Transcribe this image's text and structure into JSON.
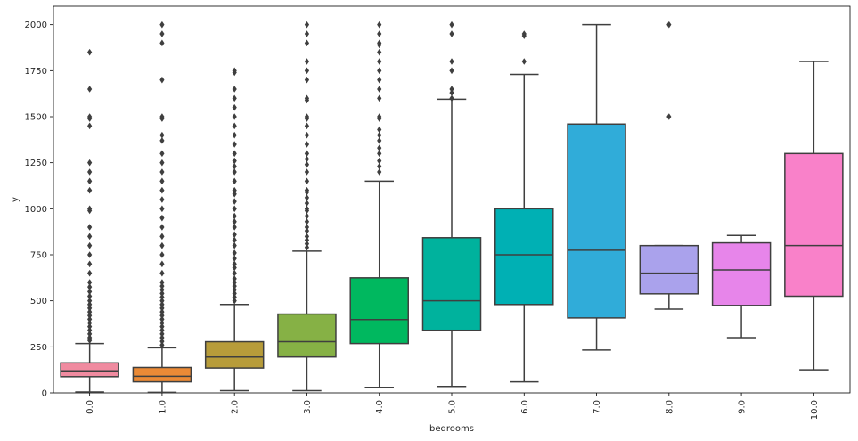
{
  "chart_data": {
    "type": "box",
    "title": "",
    "xlabel": "bedrooms",
    "ylabel": "y",
    "ylim": [
      0,
      2100
    ],
    "yticks": [
      0,
      250,
      500,
      750,
      1000,
      1250,
      1500,
      1750,
      2000
    ],
    "categories": [
      "0.0",
      "1.0",
      "2.0",
      "3.0",
      "4.0",
      "5.0",
      "6.0",
      "7.0",
      "8.0",
      "9.0",
      "10.0"
    ],
    "colors": [
      "#f08ba0",
      "#eb8a36",
      "#b79c3a",
      "#86b145",
      "#00b85f",
      "#00b29d",
      "#00b0b4",
      "#30acd9",
      "#aaa2ec",
      "#e785ea",
      "#f981c9"
    ],
    "series": [
      {
        "category": "0.0",
        "whislo": 5,
        "q1": 88,
        "med": 120,
        "q3": 163,
        "whishi": 268,
        "fliers": [
          285,
          300,
          320,
          340,
          360,
          380,
          400,
          420,
          440,
          460,
          480,
          500,
          525,
          550,
          575,
          600,
          650,
          700,
          750,
          800,
          850,
          900,
          990,
          1000,
          1100,
          1150,
          1200,
          1250,
          1450,
          1490,
          1500,
          1650,
          1850
        ]
      },
      {
        "category": "1.0",
        "whislo": 3,
        "q1": 60,
        "med": 90,
        "q3": 138,
        "whishi": 245,
        "fliers": [
          260,
          280,
          300,
          320,
          340,
          360,
          380,
          400,
          420,
          440,
          460,
          480,
          500,
          520,
          540,
          560,
          580,
          600,
          650,
          700,
          750,
          800,
          850,
          900,
          950,
          1000,
          1050,
          1100,
          1150,
          1200,
          1250,
          1300,
          1370,
          1400,
          1490,
          1500,
          1700,
          1900,
          1950,
          2000
        ]
      },
      {
        "category": "2.0",
        "whislo": 12,
        "q1": 135,
        "med": 195,
        "q3": 278,
        "whishi": 480,
        "fliers": [
          500,
          520,
          540,
          560,
          580,
          600,
          620,
          650,
          680,
          700,
          730,
          760,
          800,
          830,
          860,
          900,
          930,
          960,
          1000,
          1040,
          1080,
          1100,
          1150,
          1200,
          1230,
          1260,
          1300,
          1350,
          1400,
          1450,
          1500,
          1550,
          1600,
          1650,
          1740,
          1750
        ]
      },
      {
        "category": "3.0",
        "whislo": 12,
        "q1": 195,
        "med": 278,
        "q3": 428,
        "whishi": 770,
        "fliers": [
          790,
          810,
          830,
          850,
          880,
          900,
          930,
          960,
          990,
          1000,
          1030,
          1060,
          1090,
          1100,
          1150,
          1200,
          1240,
          1270,
          1300,
          1350,
          1400,
          1450,
          1490,
          1500,
          1590,
          1600,
          1700,
          1750,
          1800,
          1900,
          1950,
          2000
        ]
      },
      {
        "category": "4.0",
        "whislo": 30,
        "q1": 268,
        "med": 398,
        "q3": 625,
        "whishi": 1150,
        "fliers": [
          1200,
          1230,
          1260,
          1300,
          1330,
          1370,
          1400,
          1430,
          1490,
          1500,
          1600,
          1650,
          1700,
          1750,
          1800,
          1850,
          1890,
          1900,
          1950,
          2000
        ]
      },
      {
        "category": "5.0",
        "whislo": 35,
        "q1": 340,
        "med": 500,
        "q3": 843,
        "whishi": 1595,
        "fliers": [
          1600,
          1630,
          1650,
          1750,
          1800,
          1950,
          2000
        ]
      },
      {
        "category": "6.0",
        "whislo": 60,
        "q1": 480,
        "med": 750,
        "q3": 1000,
        "whishi": 1730,
        "fliers": [
          1800,
          1940,
          1950
        ]
      },
      {
        "category": "7.0",
        "whislo": 233,
        "q1": 407,
        "med": 775,
        "q3": 1460,
        "whishi": 2000,
        "fliers": []
      },
      {
        "category": "8.0",
        "whislo": 455,
        "q1": 538,
        "med": 650,
        "q3": 800,
        "whishi": 800,
        "fliers": [
          1500,
          2000
        ]
      },
      {
        "category": "9.0",
        "whislo": 300,
        "q1": 475,
        "med": 668,
        "q3": 815,
        "whishi": 855,
        "fliers": []
      },
      {
        "category": "10.0",
        "whislo": 125,
        "q1": 525,
        "med": 800,
        "q3": 1300,
        "whishi": 1800,
        "fliers": []
      }
    ]
  }
}
